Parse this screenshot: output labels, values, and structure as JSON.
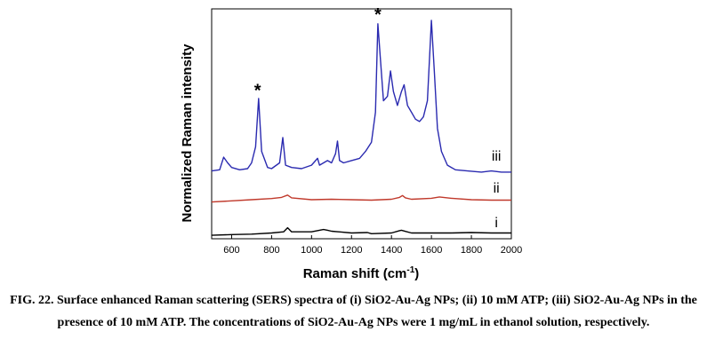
{
  "figure": {
    "caption": "FIG. 22. Surface enhanced Raman scattering (SERS) spectra of (i) SiO2-Au-Ag NPs; (ii) 10 mM ATP; (iii) SiO2-Au-Ag NPs in the presence of 10 mM ATP. The concentrations of SiO2-Au-Ag NPs were 1 mg/mL in ethanol solution, respectively."
  },
  "chart_data": {
    "type": "line",
    "title": "",
    "xlabel": "Raman shift (cm⁻¹)",
    "xlabel_main": "Raman shift (cm",
    "xlabel_sup": "-1",
    "xlabel_close": ")",
    "ylabel": "Normalized Raman intensity",
    "xlim": [
      500,
      2000
    ],
    "ylim": [
      0,
      1
    ],
    "y_ticks_shown": false,
    "x_ticks": [
      600,
      800,
      1000,
      1200,
      1400,
      1600,
      1800,
      2000
    ],
    "x_tick_labels": [
      "600",
      "800",
      "1000",
      "1200",
      "1400",
      "1600",
      "1800",
      "2000"
    ],
    "grid": false,
    "legend": "none",
    "series": [
      {
        "name": "i",
        "color": "#000000",
        "x": [
          500,
          600,
          700,
          800,
          860,
          880,
          900,
          1000,
          1060,
          1080,
          1100,
          1200,
          1280,
          1300,
          1400,
          1440,
          1450,
          1470,
          1500,
          1600,
          1700,
          1800,
          1900,
          2000
        ],
        "y": [
          0.015,
          0.018,
          0.02,
          0.025,
          0.03,
          0.048,
          0.03,
          0.03,
          0.04,
          0.037,
          0.033,
          0.025,
          0.027,
          0.022,
          0.025,
          0.035,
          0.037,
          0.032,
          0.025,
          0.025,
          0.025,
          0.027,
          0.025,
          0.025
        ]
      },
      {
        "name": "ii",
        "color": "#c0392b",
        "x": [
          500,
          600,
          700,
          800,
          850,
          880,
          900,
          1000,
          1100,
          1200,
          1300,
          1400,
          1440,
          1455,
          1470,
          1500,
          1600,
          1640,
          1700,
          1800,
          1900,
          2000
        ],
        "y": [
          0.16,
          0.165,
          0.17,
          0.175,
          0.18,
          0.19,
          0.178,
          0.17,
          0.172,
          0.17,
          0.168,
          0.172,
          0.18,
          0.188,
          0.178,
          0.172,
          0.176,
          0.182,
          0.176,
          0.17,
          0.168,
          0.168
        ]
      },
      {
        "name": "iii",
        "color": "#2a2ab0",
        "x": [
          500,
          540,
          560,
          580,
          600,
          640,
          680,
          700,
          720,
          735,
          750,
          780,
          800,
          840,
          856,
          870,
          900,
          950,
          1000,
          1030,
          1040,
          1060,
          1080,
          1100,
          1120,
          1130,
          1140,
          1160,
          1200,
          1240,
          1270,
          1300,
          1320,
          1332,
          1345,
          1360,
          1380,
          1395,
          1410,
          1430,
          1450,
          1463,
          1480,
          1500,
          1520,
          1540,
          1560,
          1580,
          1600,
          1615,
          1630,
          1650,
          1680,
          1720,
          1780,
          1850,
          1900,
          1950,
          2000
        ],
        "y": [
          0.295,
          0.3,
          0.355,
          0.33,
          0.31,
          0.3,
          0.305,
          0.33,
          0.4,
          0.61,
          0.38,
          0.31,
          0.305,
          0.33,
          0.44,
          0.32,
          0.31,
          0.305,
          0.32,
          0.35,
          0.32,
          0.33,
          0.34,
          0.33,
          0.37,
          0.425,
          0.34,
          0.33,
          0.34,
          0.35,
          0.38,
          0.42,
          0.55,
          0.935,
          0.78,
          0.6,
          0.62,
          0.73,
          0.64,
          0.58,
          0.64,
          0.67,
          0.58,
          0.55,
          0.52,
          0.51,
          0.53,
          0.6,
          0.95,
          0.72,
          0.48,
          0.38,
          0.32,
          0.3,
          0.295,
          0.29,
          0.295,
          0.29,
          0.29
        ]
      }
    ],
    "annotations": [
      {
        "text": "*",
        "x": 730,
        "y": 0.65
      },
      {
        "text": "*",
        "x": 1332,
        "y": 0.98
      }
    ],
    "series_labels": [
      {
        "text": "iii",
        "x": 1925,
        "y": 0.34
      },
      {
        "text": "ii",
        "x": 1925,
        "y": 0.2
      },
      {
        "text": "i",
        "x": 1925,
        "y": 0.05
      }
    ]
  }
}
